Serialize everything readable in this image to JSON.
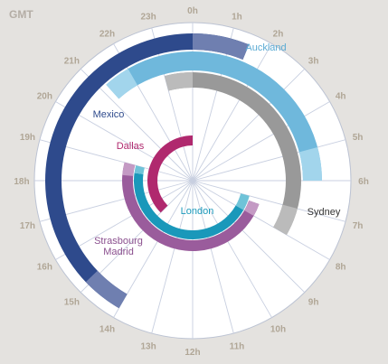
{
  "corner_label": "GMT",
  "chart_data": {
    "type": "radial-timeline",
    "hour_ticks": [
      "0h",
      "1h",
      "2h",
      "3h",
      "4h",
      "5h",
      "6h",
      "7h",
      "8h",
      "9h",
      "10h",
      "11h",
      "12h",
      "13h",
      "14h",
      "15h",
      "16h",
      "17h",
      "18h",
      "19h",
      "20h",
      "21h",
      "22h",
      "23h"
    ],
    "series": [
      {
        "name": "Mexico",
        "color": "#2e4a8c",
        "fade_color": "#6f7fb0",
        "label_color": "#2e4a8c",
        "start": 14.0,
        "end": 1.5,
        "fade_start": 14.0,
        "fade_start_end": 15.1,
        "fade_end_start": 0.0,
        "fade_end": 1.5
      },
      {
        "name": "Auckland",
        "color": "#6fb8dc",
        "fade_color": "#a2d5ec",
        "label_color": "#5aaad3",
        "start": 21.2,
        "end": 6.0,
        "fade_start": 21.2,
        "fade_start_end": 22.0,
        "fade_end_start": 5.0,
        "fade_end": 6.0
      },
      {
        "name": "Sydney",
        "color": "#999999",
        "fade_color": "#bbbbbb",
        "label_color": "#333333",
        "start": 23.0,
        "end": 8.0,
        "fade_start": 23.0,
        "fade_start_end": 0.0,
        "fade_end_start": 7.0,
        "fade_end": 8.0
      },
      {
        "name": "Dallas",
        "color": "#b0296e",
        "fade_color": "#c96a9a",
        "label_color": "#b0296e",
        "start": 15.0,
        "end": 0.0,
        "fade_start": null,
        "fade_start_end": null,
        "fade_end_start": null,
        "fade_end": null
      },
      {
        "name": "London",
        "color": "#1a98ba",
        "fade_color": "#6fc3d8",
        "label_color": "#1a98ba",
        "start": 8.0,
        "end": 18.5,
        "fade_start": 7.0,
        "fade_start_end": 8.0,
        "fade_end_start": 18.5,
        "fade_end": 19.0
      },
      {
        "name": "Strasbourg Madrid",
        "label_lines": [
          "Strasbourg",
          "Madrid"
        ],
        "color": "#9a5c9c",
        "fade_color": "#c49ac4",
        "label_color": "#8a4f8e",
        "start": 7.3,
        "end": 19.0,
        "fade_start": 7.3,
        "fade_start_end": 8.0,
        "fade_end_start": 18.3,
        "fade_end": 19.0
      }
    ]
  }
}
